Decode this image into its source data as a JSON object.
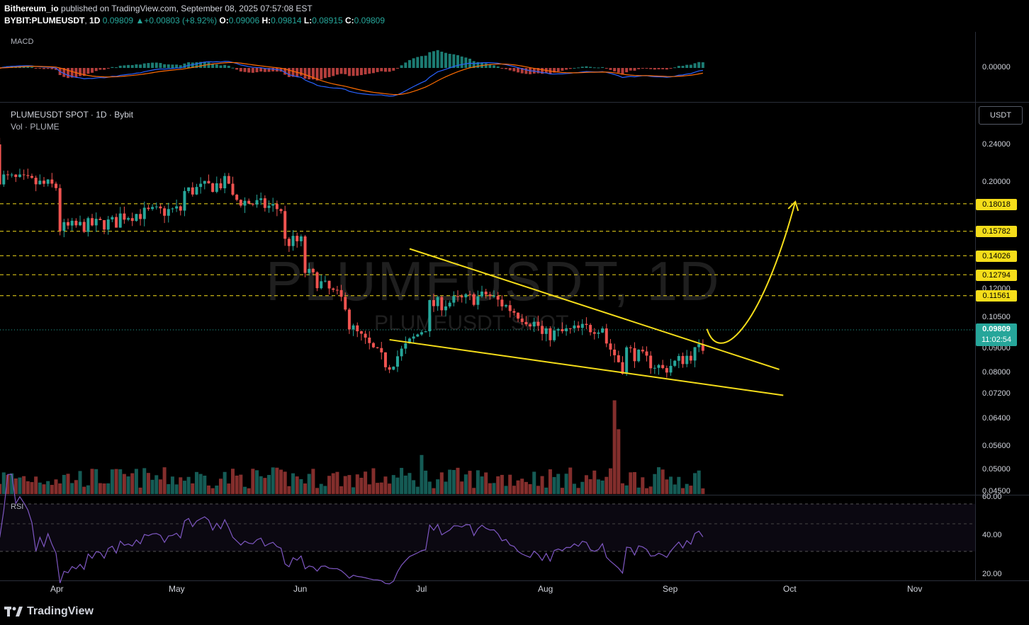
{
  "header": {
    "publisher": "Bithereum_io",
    "published_text": "published on TradingView.com, September 08, 2025 07:57:08 EST",
    "symbol": "BYBIT:PLUMEUSDT",
    "interval": "1D",
    "last": "0.09809",
    "change": "+0.00803 (+8.92%)",
    "open_label": "O:",
    "open": "0.09006",
    "high_label": "H:",
    "high": "0.09814",
    "low_label": "L:",
    "low": "0.08915",
    "close_label": "C:",
    "close": "0.09809"
  },
  "macd": {
    "label": "MACD",
    "zero_tick": "0.00000"
  },
  "main": {
    "title": "PLUMEUSDT SPOT · 1D · Bybit",
    "vol_label": "Vol · PLUME",
    "currency_button": "USDT",
    "watermark": "PLUMEUSDT, 1D",
    "watermark_sub": "PLUMEUSDT SPOT",
    "price_ticks": [
      "0.24000",
      "0.20000",
      "0.12000",
      "0.10500",
      "0.09000",
      "0.08000",
      "0.07200",
      "0.06400",
      "0.05600",
      "0.05000",
      "0.04500"
    ],
    "levels": [
      "0.18018",
      "0.15782",
      "0.14026",
      "0.12794",
      "0.11561"
    ],
    "last_price": "0.09809",
    "countdown": "11:02:54"
  },
  "rsi": {
    "label": "RSI",
    "ticks": [
      "60.00",
      "40.00",
      "20.00"
    ]
  },
  "time_axis": [
    "Apr",
    "May",
    "Jun",
    "Jul",
    "Aug",
    "Sep",
    "Oct",
    "Nov"
  ],
  "footer": {
    "brand": "TradingView",
    "logo_icon": "tradingview-logo-icon"
  },
  "colors": {
    "up": "#26a69a",
    "down": "#ef5350",
    "annotation": "#f5dd1a",
    "rsi_line": "#7e57c2"
  },
  "chart_data": {
    "type": "candlestick",
    "scale": "log",
    "ylim": [
      0.045,
      0.26
    ],
    "x_range": [
      "2025-03-17",
      "2025-11-15"
    ],
    "x_labels": [
      "Apr",
      "May",
      "Jun",
      "Jul",
      "Aug",
      "Sep",
      "Oct",
      "Nov"
    ],
    "horizontal_levels": [
      0.18018,
      0.15782,
      0.14026,
      0.12794,
      0.11561
    ],
    "last_price": 0.09809,
    "wedge": {
      "upper": [
        [
          "2025-06-27",
          0.145
        ],
        [
          "2025-09-27",
          0.081
        ]
      ],
      "lower": [
        [
          "2025-06-22",
          0.0935
        ],
        [
          "2025-09-28",
          0.0715
        ]
      ]
    },
    "projection": [
      [
        "2025-09-09",
        0.0985
      ],
      [
        "2025-09-12",
        0.089
      ],
      [
        "2025-09-22",
        0.11
      ],
      [
        "2025-10-01",
        0.182
      ]
    ],
    "ohlc_summary": [
      [
        "2025-03-17",
        0.24,
        0.205
      ],
      [
        "2025-04-01",
        0.195,
        0.16
      ],
      [
        "2025-04-15",
        0.165,
        0.17
      ],
      [
        "2025-05-01",
        0.175,
        0.19
      ],
      [
        "2025-05-13",
        0.2,
        0.185
      ],
      [
        "2025-05-27",
        0.175,
        0.15
      ],
      [
        "2025-06-01",
        0.15,
        0.13
      ],
      [
        "2025-06-12",
        0.11,
        0.1
      ],
      [
        "2025-06-22",
        0.082,
        0.083
      ],
      [
        "2025-07-01",
        0.1,
        0.11
      ],
      [
        "2025-07-15",
        0.115,
        0.118
      ],
      [
        "2025-07-29",
        0.1,
        0.095
      ],
      [
        "2025-08-14",
        0.1,
        0.095
      ],
      [
        "2025-08-19",
        0.082,
        0.09
      ],
      [
        "2025-08-28",
        0.082,
        0.08
      ],
      [
        "2025-09-08",
        0.09006,
        0.09809
      ]
    ]
  }
}
